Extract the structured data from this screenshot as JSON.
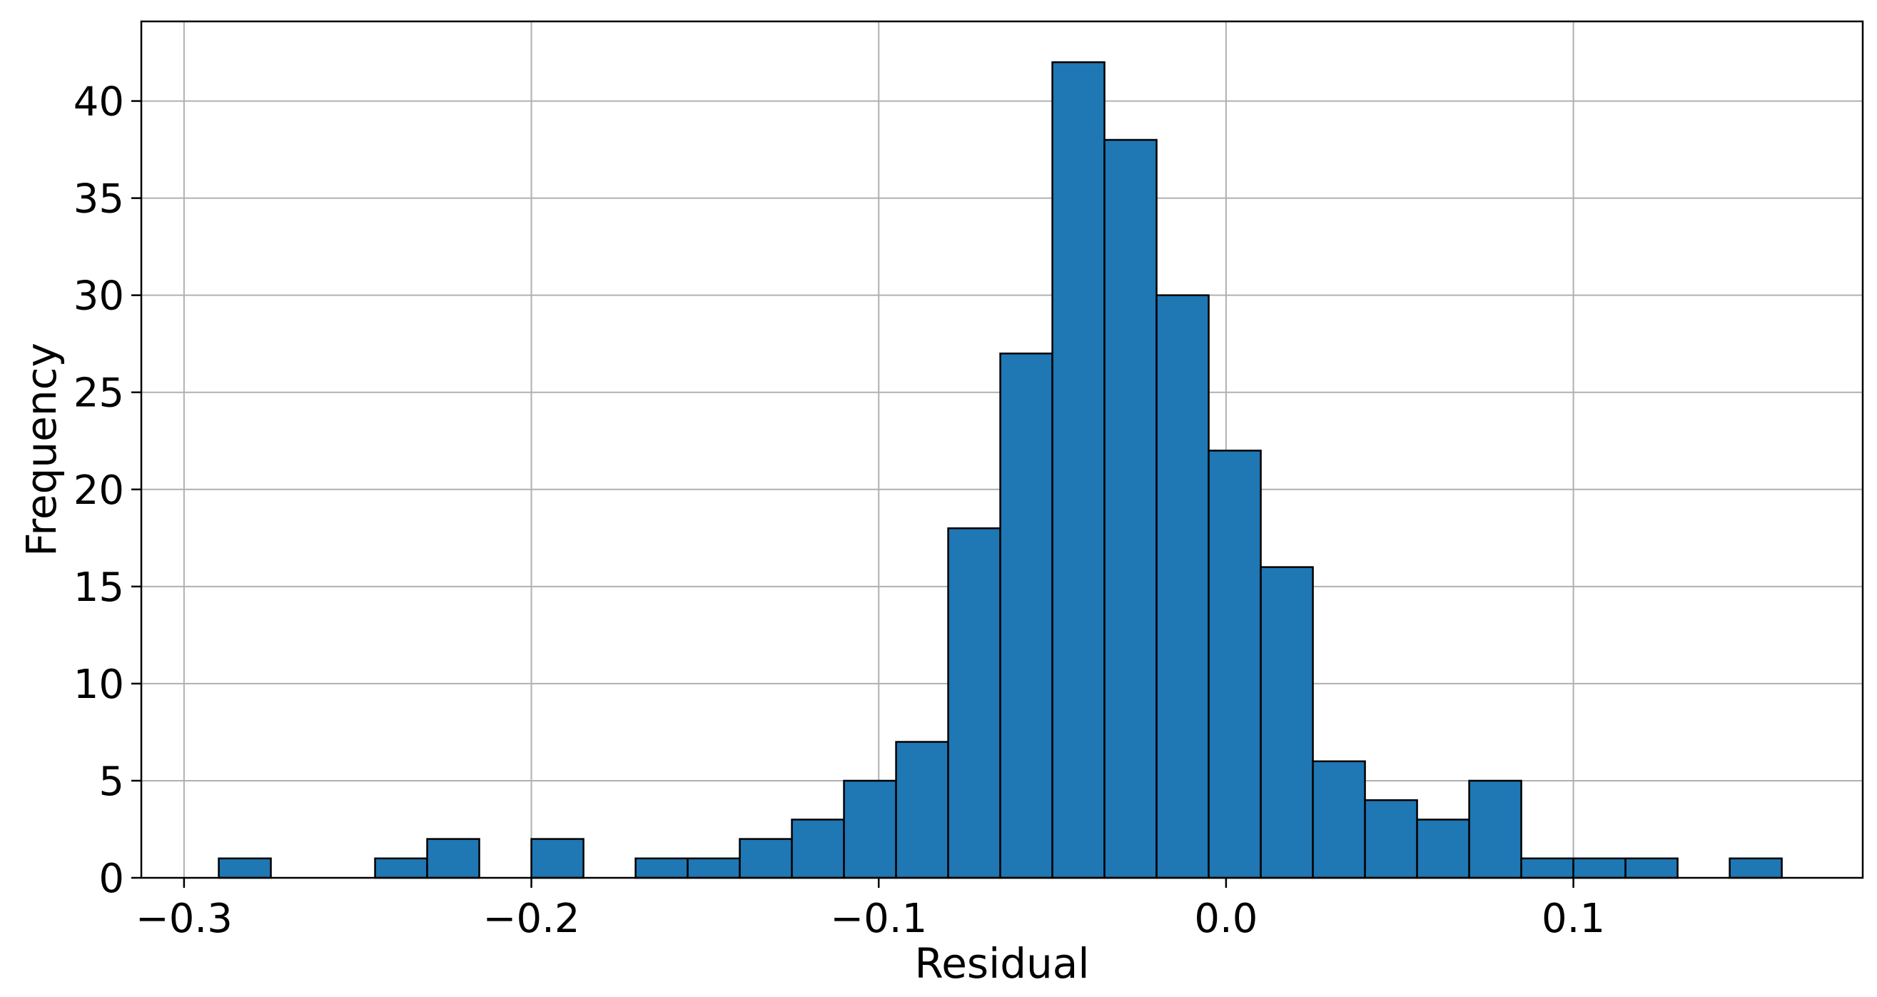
{
  "chart_data": {
    "type": "bar",
    "title": "",
    "xlabel": "Residual",
    "ylabel": "Frequency",
    "xlim": [
      -0.3123,
      0.1833
    ],
    "ylim": [
      0,
      44.1
    ],
    "grid": true,
    "legend": "none",
    "bar_color": "#1f77b4",
    "edge_color": "#000000",
    "grid_color": "#b0b0b0",
    "bin_width": 0.015,
    "bins_start": [
      -0.29,
      -0.275,
      -0.26,
      -0.245,
      -0.23,
      -0.215,
      -0.2,
      -0.185,
      -0.17,
      -0.155,
      -0.14,
      -0.125,
      -0.11,
      -0.095,
      -0.08,
      -0.065,
      -0.05,
      -0.035,
      -0.02,
      -0.005,
      0.01,
      0.025,
      0.04,
      0.055,
      0.07,
      0.085,
      0.1,
      0.115,
      0.13,
      0.145
    ],
    "values": [
      1,
      0,
      0,
      1,
      2,
      0,
      2,
      0,
      1,
      1,
      2,
      3,
      5,
      7,
      18,
      27,
      42,
      38,
      30,
      22,
      16,
      6,
      4,
      3,
      5,
      1,
      1,
      1,
      0,
      1
    ],
    "x_ticks": [
      {
        "value": -0.3,
        "label": "−0.3"
      },
      {
        "value": -0.2,
        "label": "−0.2"
      },
      {
        "value": -0.1,
        "label": "−0.1"
      },
      {
        "value": 0.0,
        "label": "0.0"
      },
      {
        "value": 0.1,
        "label": "0.1"
      }
    ],
    "y_ticks": [
      {
        "value": 0,
        "label": "0"
      },
      {
        "value": 5,
        "label": "5"
      },
      {
        "value": 10,
        "label": "10"
      },
      {
        "value": 15,
        "label": "15"
      },
      {
        "value": 20,
        "label": "20"
      },
      {
        "value": 25,
        "label": "25"
      },
      {
        "value": 30,
        "label": "30"
      },
      {
        "value": 35,
        "label": "35"
      },
      {
        "value": 40,
        "label": "40"
      }
    ]
  }
}
